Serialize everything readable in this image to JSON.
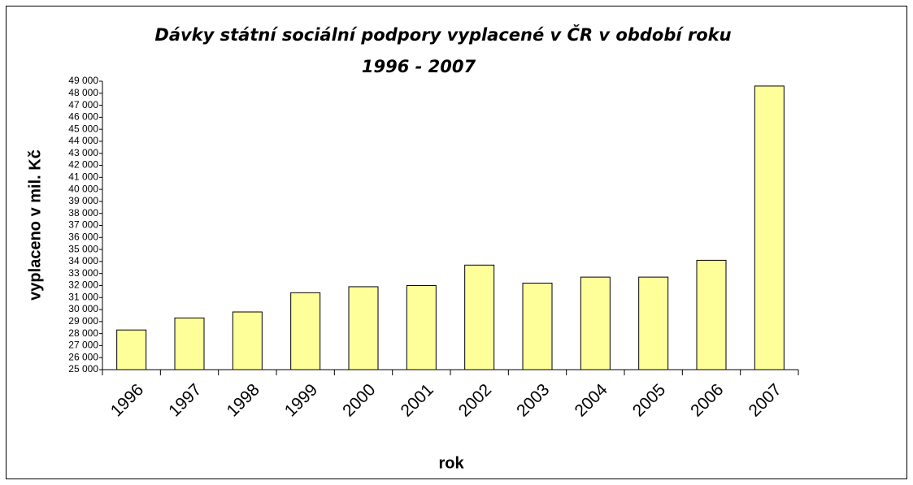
{
  "chart_data": {
    "type": "bar",
    "title": [
      "Dávky státní sociální podpory vyplacené v ČR v období roku",
      "1996 - 2007"
    ],
    "x_label": "rok",
    "y_label": "vyplaceno v mil. Kč",
    "categories": [
      "1996",
      "1997",
      "1998",
      "1999",
      "2000",
      "2001",
      "2002",
      "2003",
      "2004",
      "2005",
      "2006",
      "2007"
    ],
    "values": [
      28300,
      29300,
      29800,
      31400,
      31900,
      32000,
      33700,
      32200,
      32700,
      32700,
      34100,
      48600
    ],
    "color": "#ffff99",
    "ylim": [
      25000,
      49000
    ],
    "yticks": [
      {
        "value": 25000,
        "label": "25 000"
      },
      {
        "value": 26000,
        "label": "26 000"
      },
      {
        "value": 27000,
        "label": "27 000"
      },
      {
        "value": 28000,
        "label": "28 000"
      },
      {
        "value": 29000,
        "label": "29 000"
      },
      {
        "value": 30000,
        "label": "30 000"
      },
      {
        "value": 31000,
        "label": "31 000"
      },
      {
        "value": 32000,
        "label": "32 000"
      },
      {
        "value": 33000,
        "label": "33 000"
      },
      {
        "value": 34000,
        "label": "34 000"
      },
      {
        "value": 35000,
        "label": "35 000"
      },
      {
        "value": 36000,
        "label": "36 000"
      },
      {
        "value": 37000,
        "label": "37 000"
      },
      {
        "value": 38000,
        "label": "38 000"
      },
      {
        "value": 39000,
        "label": "39 000"
      },
      {
        "value": 40000,
        "label": "40 000"
      },
      {
        "value": 41000,
        "label": "41 000"
      },
      {
        "value": 42000,
        "label": "42 000"
      },
      {
        "value": 43000,
        "label": "43 000"
      },
      {
        "value": 44000,
        "label": "44 000"
      },
      {
        "value": 45000,
        "label": "45 000"
      },
      {
        "value": 46000,
        "label": "46 000"
      },
      {
        "value": 47000,
        "label": "47 000"
      },
      {
        "value": 48000,
        "label": "48 000"
      },
      {
        "value": 49000,
        "label": "49 000"
      }
    ],
    "grid": false
  }
}
